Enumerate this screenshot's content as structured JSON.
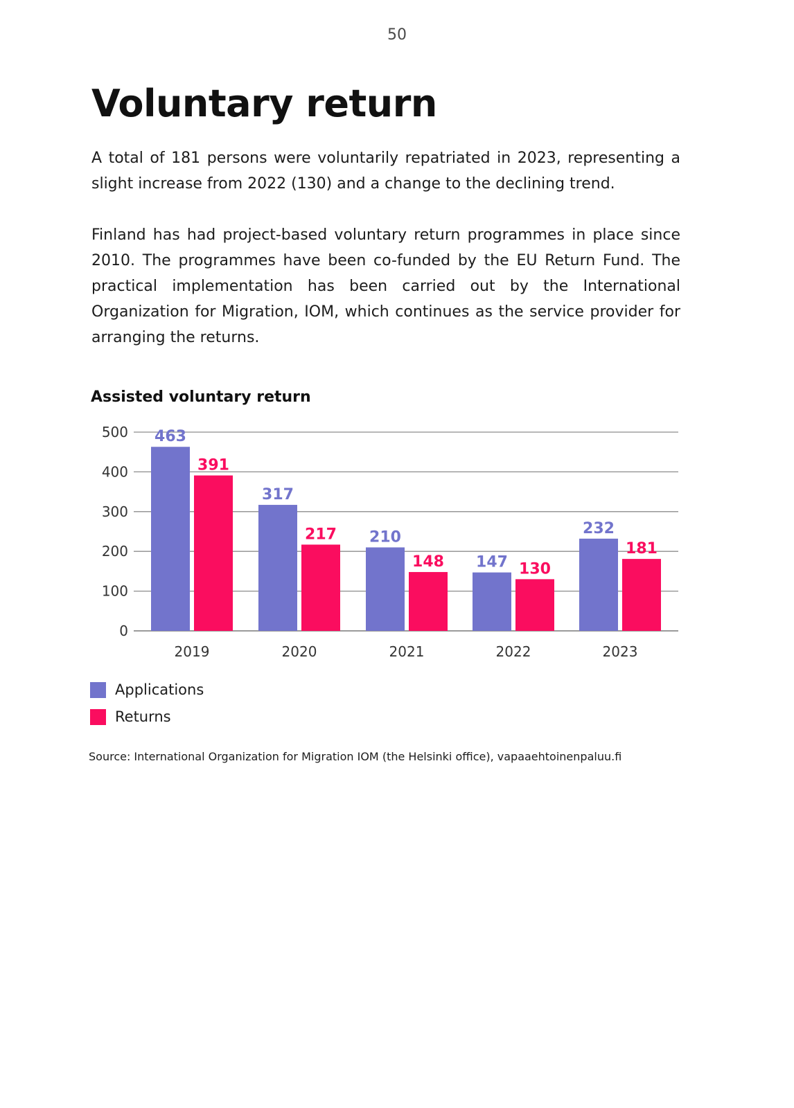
{
  "page_number": "50",
  "heading": "Voluntary return",
  "paragraphs": [
    "A total of 181 persons were voluntarily repatriated in 2023, representing a slight increase from 2022 (130) and a change to the declining trend.",
    "Finland has had project-based voluntary return programmes in place since 2010. The programmes have been co-funded by the EU Return Fund. The practical implementation has been carried out by the International Organization for Migration, IOM, which continues as the service provider for arranging the returns."
  ],
  "chart_data": {
    "type": "bar",
    "title": "Assisted voluntary return",
    "categories": [
      "2019",
      "2020",
      "2021",
      "2022",
      "2023"
    ],
    "series": [
      {
        "name": "Applications",
        "color": "#7274cc",
        "values": [
          463,
          317,
          210,
          147,
          232
        ]
      },
      {
        "name": "Returns",
        "color": "#fa0d5f",
        "values": [
          391,
          217,
          148,
          130,
          181
        ]
      }
    ],
    "ylim": [
      0,
      500
    ],
    "yticks": [
      "0",
      "100",
      "200",
      "300",
      "400",
      "500"
    ],
    "grid": true,
    "legend_position": "bottom-left"
  },
  "source": "Source: International Organization for Migration IOM (the Helsinki office), vapaaehtoinenpaluu.fi"
}
